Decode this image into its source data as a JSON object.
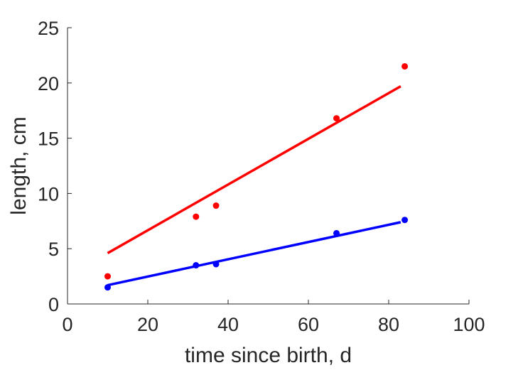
{
  "chart_data": {
    "type": "scatter",
    "title": "",
    "xlabel": "time since birth, d",
    "ylabel": "length, cm",
    "xlim": [
      0,
      100
    ],
    "ylim": [
      0,
      25
    ],
    "xticks": [
      0,
      20,
      40,
      60,
      80,
      100
    ],
    "yticks": [
      0,
      5,
      10,
      15,
      20,
      25
    ],
    "grid": false,
    "legend": "none",
    "series": [
      {
        "color": "#ff0000",
        "points": {
          "x": [
            10,
            32,
            37,
            67,
            84
          ],
          "y": [
            2.5,
            7.9,
            8.9,
            16.8,
            21.5
          ]
        },
        "fit_line": {
          "x": [
            10,
            83
          ],
          "y": [
            4.6,
            19.7
          ]
        }
      },
      {
        "color": "#0000ff",
        "points": {
          "x": [
            10,
            32,
            37,
            67,
            84
          ],
          "y": [
            1.5,
            3.5,
            3.6,
            6.4,
            7.6
          ]
        },
        "fit_line": {
          "x": [
            10,
            83
          ],
          "y": [
            1.7,
            7.4
          ]
        }
      }
    ]
  }
}
